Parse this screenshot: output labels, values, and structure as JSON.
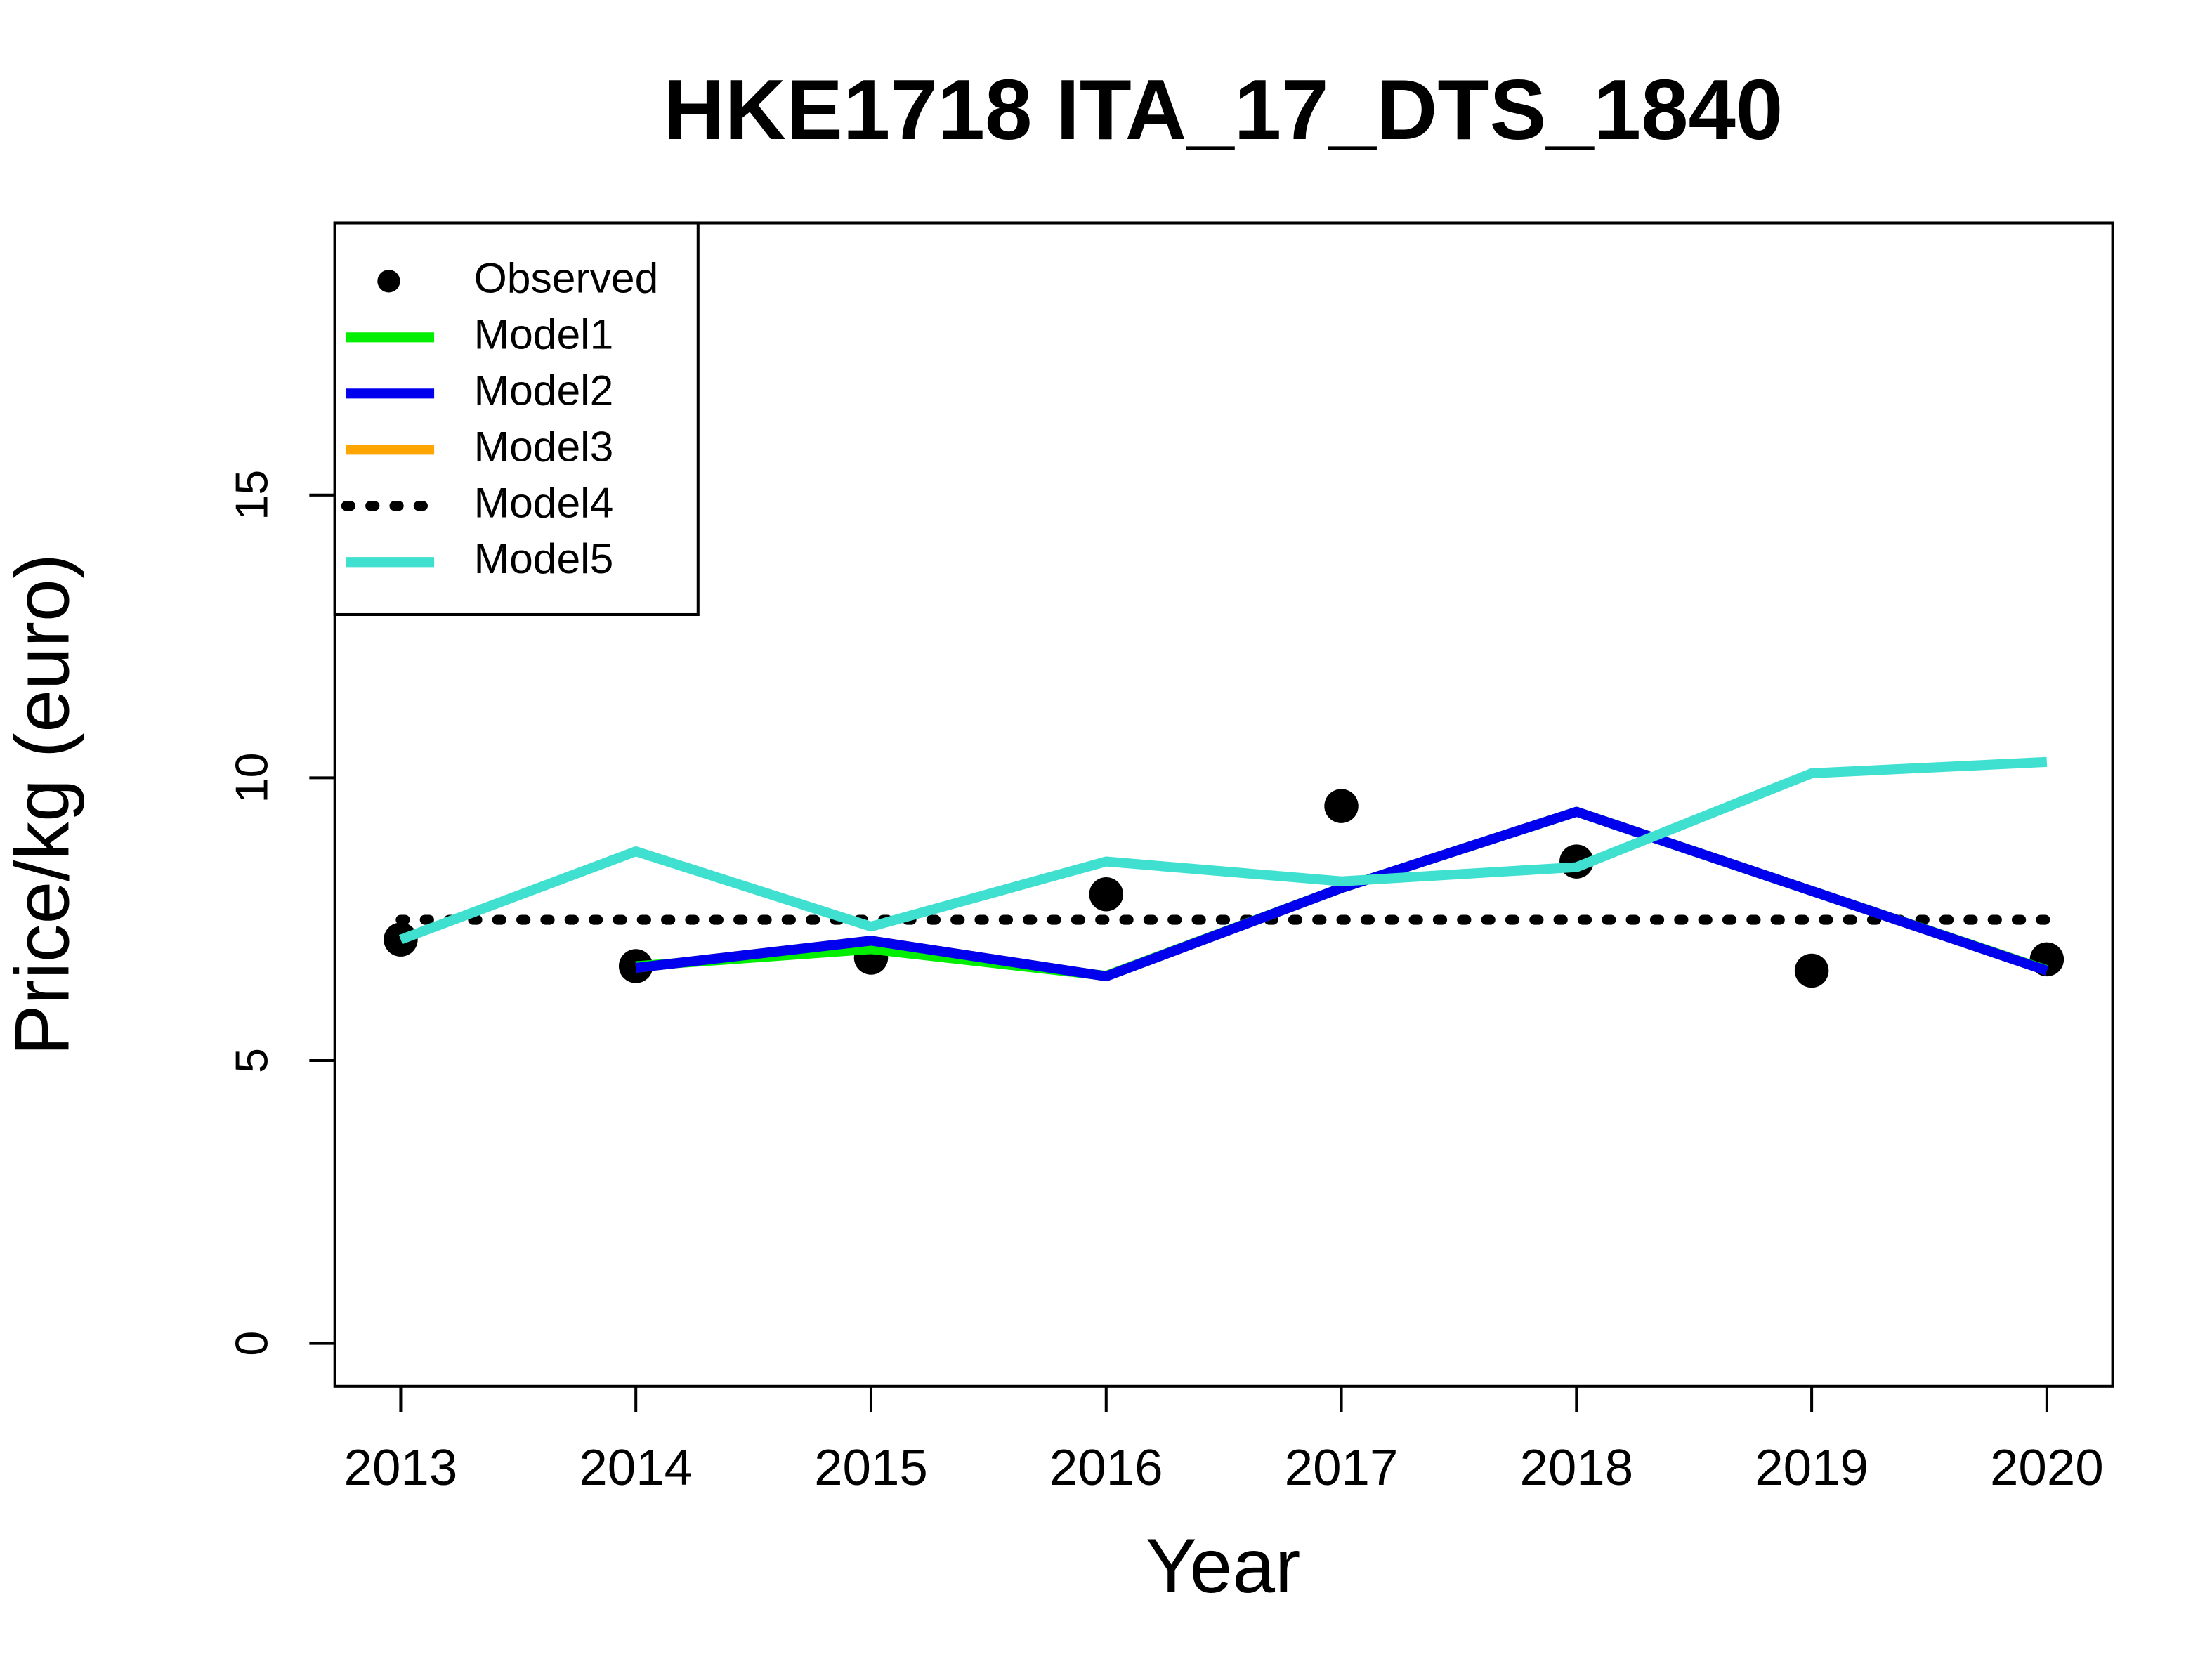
{
  "chart_data": {
    "type": "line",
    "title": "HKE1718 ITA_17_DTS_1840",
    "x_label": "Year",
    "y_label": "Price/kg (euro)",
    "x": [
      2013,
      2014,
      2015,
      2016,
      2017,
      2018,
      2019,
      2020
    ],
    "xlim": [
      2012.72,
      2020.28
    ],
    "xticks": [
      2013,
      2014,
      2015,
      2016,
      2017,
      2018,
      2019,
      2020
    ],
    "ylim": [
      -0.76,
      19.81
    ],
    "yticks": [
      0,
      5,
      10,
      15
    ],
    "legend": "top-left",
    "series": [
      {
        "name": "Observed",
        "color": "#000000",
        "style": "points",
        "values": [
          7.14,
          6.67,
          6.82,
          7.94,
          9.5,
          8.52,
          6.59,
          6.79
        ]
      },
      {
        "name": "Model1",
        "color": "#00ee00",
        "style": "solid",
        "values": [
          null,
          6.67,
          6.97,
          6.5,
          8.05,
          9.4,
          8.0,
          6.6
        ]
      },
      {
        "name": "Model2",
        "color": "#0000ee",
        "style": "solid",
        "values": [
          null,
          6.64,
          7.12,
          6.49,
          8.05,
          9.4,
          8.0,
          6.59
        ]
      },
      {
        "name": "Model3",
        "color": "#ffa500",
        "style": "solid",
        "values": [
          null,
          6.64,
          7.12,
          6.49,
          8.05,
          9.4,
          8.0,
          6.59
        ]
      },
      {
        "name": "Model4",
        "color": "#000000",
        "style": "dotted",
        "values": [
          7.49,
          7.49,
          7.49,
          7.49,
          7.49,
          7.49,
          7.49,
          7.49
        ]
      },
      {
        "name": "Model5",
        "color": "#40e0d0",
        "style": "solid",
        "values": [
          7.14,
          8.7,
          7.37,
          8.52,
          8.17,
          8.42,
          10.08,
          10.28
        ]
      }
    ]
  }
}
